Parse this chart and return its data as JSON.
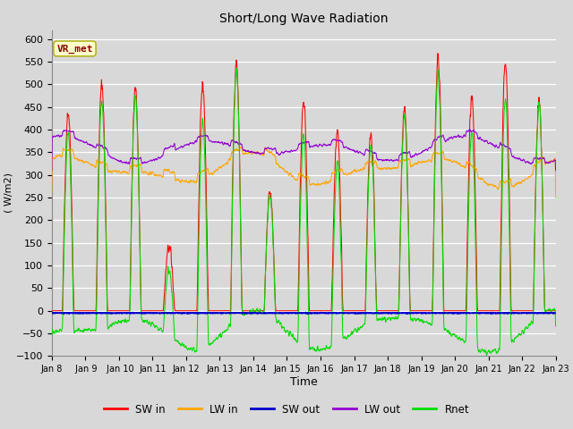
{
  "title": "Short/Long Wave Radiation",
  "xlabel": "Time",
  "ylabel": "( W/m2)",
  "ylim": [
    -100,
    620
  ],
  "yticks": [
    -100,
    -50,
    0,
    50,
    100,
    150,
    200,
    250,
    300,
    350,
    400,
    450,
    500,
    550,
    600
  ],
  "annotation_text": "VR_met",
  "annotation_box_color": "#FFFFCC",
  "annotation_text_color": "#8B0000",
  "bg_color": "#D8D8D8",
  "plot_bg_color": "#D8D8D8",
  "colors": {
    "SW_in": "#FF0000",
    "LW_in": "#FFA500",
    "SW_out": "#0000CC",
    "LW_out": "#9400D3",
    "Rnet": "#00DD00"
  },
  "legend_labels": [
    "SW in",
    "LW in",
    "SW out",
    "LW out",
    "Rnet"
  ],
  "num_days": 15,
  "x_tick_labels": [
    "Jan 8",
    " Jan 9",
    " Jan 10",
    "Jan 11",
    "Jan 12",
    "Jan 13",
    "Jan 14",
    "Jan 15",
    "Jan 16",
    "Jan 17",
    "Jan 18",
    "Jan 19",
    "Jan 20",
    "Jan 21",
    "Jan 22",
    "Jan 23"
  ],
  "points_per_day": 144
}
